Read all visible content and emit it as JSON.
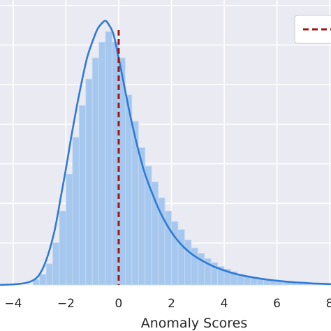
{
  "chart_data": {
    "type": "histogram",
    "xlabel": "Anomaly Scores",
    "xlim": [
      -4.5,
      8.05
    ],
    "ylim": [
      0,
      1.0
    ],
    "x_ticks": [
      -4,
      -2,
      0,
      2,
      4,
      6,
      8
    ],
    "x_tick_labels": [
      "−4",
      "−2",
      "0",
      "2",
      "4",
      "6",
      "8"
    ],
    "bin_width": 0.25,
    "bins_x_start": [
      -3.25,
      -3.0,
      -2.75,
      -2.5,
      -2.25,
      -2.0,
      -1.75,
      -1.5,
      -1.25,
      -1.0,
      -0.75,
      -0.5,
      -0.25,
      0.0,
      0.25,
      0.5,
      0.75,
      1.0,
      1.25,
      1.5,
      1.75,
      2.0,
      2.25,
      2.5,
      2.75,
      3.0,
      3.25,
      3.5,
      3.75,
      4.0,
      4.25,
      4.5,
      4.75,
      5.0,
      5.25,
      5.5,
      5.75,
      6.0,
      6.25,
      6.5,
      6.75,
      7.0,
      7.25,
      7.5,
      7.75
    ],
    "bin_heights": [
      0.02,
      0.04,
      0.08,
      0.16,
      0.28,
      0.42,
      0.56,
      0.68,
      0.78,
      0.86,
      0.92,
      0.96,
      0.92,
      0.86,
      0.72,
      0.62,
      0.52,
      0.45,
      0.39,
      0.33,
      0.28,
      0.24,
      0.21,
      0.17,
      0.14,
      0.12,
      0.1,
      0.085,
      0.07,
      0.06,
      0.05,
      0.04,
      0.035,
      0.03,
      0.025,
      0.02,
      0.016,
      0.014,
      0.012,
      0.01,
      0.008,
      0.006,
      0.005,
      0.004,
      0.003
    ],
    "kde_x": [
      -4.5,
      -4.0,
      -3.5,
      -3.2,
      -3.0,
      -2.8,
      -2.6,
      -2.4,
      -2.2,
      -2.0,
      -1.8,
      -1.6,
      -1.4,
      -1.2,
      -1.0,
      -0.8,
      -0.6,
      -0.5,
      -0.4,
      -0.2,
      0.0,
      0.2,
      0.4,
      0.6,
      0.8,
      1.0,
      1.3,
      1.6,
      2.0,
      2.4,
      2.8,
      3.2,
      3.6,
      4.0,
      4.5,
      5.0,
      5.5,
      6.0,
      6.5,
      7.0,
      7.5,
      8.05
    ],
    "kde_y": [
      0.0,
      0.002,
      0.008,
      0.02,
      0.04,
      0.08,
      0.14,
      0.22,
      0.33,
      0.44,
      0.56,
      0.67,
      0.77,
      0.86,
      0.92,
      0.97,
      0.995,
      1.0,
      0.99,
      0.95,
      0.86,
      0.76,
      0.66,
      0.57,
      0.49,
      0.42,
      0.34,
      0.27,
      0.2,
      0.15,
      0.115,
      0.09,
      0.07,
      0.055,
      0.04,
      0.03,
      0.022,
      0.016,
      0.011,
      0.008,
      0.005,
      0.003
    ],
    "vline_x": 0,
    "colors": {
      "background": "#eaeaf2",
      "grid": "#ffffff",
      "bar_fill": "#a7c8ee",
      "bar_edge": "#c4daf3",
      "kde_line": "#2f7ad4",
      "vline": "#a01414",
      "legend_bg": "#ffffff",
      "legend_border": "#cccccc"
    },
    "legend": {
      "position": "top-right",
      "entries": [
        ""
      ]
    }
  }
}
